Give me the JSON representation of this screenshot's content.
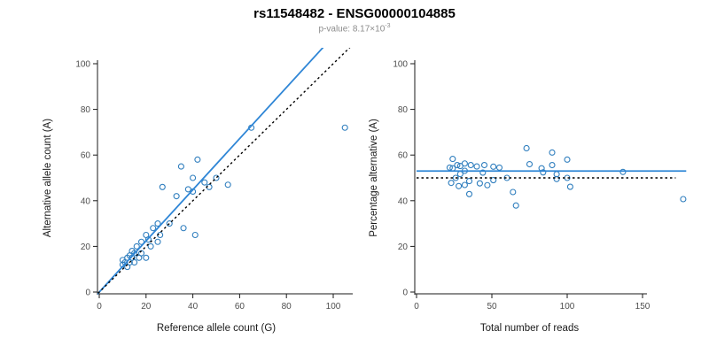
{
  "header": {
    "title": "rs11548482 - ENSG00000104885",
    "pvalue_main": "p-value: 8.17×10",
    "pvalue_exponent": "-3"
  },
  "chart_data": [
    {
      "type": "scatter",
      "xlabel": "Reference allele count (G)",
      "ylabel": "Alternative allele count (A)",
      "xlim": [
        0,
        100
      ],
      "ylim": [
        0,
        100
      ],
      "xticks": [
        0,
        20,
        40,
        60,
        80,
        100
      ],
      "yticks": [
        0,
        20,
        40,
        60,
        80,
        100
      ],
      "grid": false,
      "point_color": "#2f7ebe",
      "points": [
        [
          10,
          12
        ],
        [
          10,
          14
        ],
        [
          11,
          13
        ],
        [
          12,
          15
        ],
        [
          12,
          11
        ],
        [
          13,
          16
        ],
        [
          13,
          13
        ],
        [
          14,
          15
        ],
        [
          14,
          18
        ],
        [
          15,
          13
        ],
        [
          15,
          17
        ],
        [
          16,
          20
        ],
        [
          17,
          15
        ],
        [
          18,
          22
        ],
        [
          18,
          17
        ],
        [
          20,
          25
        ],
        [
          20,
          15
        ],
        [
          21,
          23
        ],
        [
          22,
          20
        ],
        [
          23,
          28
        ],
        [
          25,
          22
        ],
        [
          25,
          30
        ],
        [
          26,
          25
        ],
        [
          27,
          46
        ],
        [
          30,
          30
        ],
        [
          33,
          42
        ],
        [
          35,
          55
        ],
        [
          36,
          28
        ],
        [
          38,
          45
        ],
        [
          40,
          50
        ],
        [
          40,
          44
        ],
        [
          41,
          25
        ],
        [
          42,
          58
        ],
        [
          45,
          48
        ],
        [
          47,
          46
        ],
        [
          50,
          50
        ],
        [
          55,
          47
        ],
        [
          65,
          72
        ],
        [
          105,
          72
        ]
      ],
      "lines": [
        {
          "name": "regression-line",
          "slope": 1.12,
          "intercept": 0,
          "color": "#2f86d6",
          "width": 1.8,
          "dash": "solid",
          "x_range": [
            -2,
            120
          ]
        },
        {
          "name": "identity-line",
          "slope": 1,
          "intercept": 0,
          "color": "#000000",
          "width": 1.4,
          "dash": "dotted",
          "x_range": [
            -2,
            118
          ]
        }
      ]
    },
    {
      "type": "scatter",
      "xlabel": "Total number of reads",
      "ylabel": "Percentage alternative (A)",
      "xlim": [
        0,
        150
      ],
      "ylim": [
        0,
        100
      ],
      "xticks": [
        0,
        50,
        100,
        150
      ],
      "yticks": [
        0,
        20,
        40,
        60,
        80,
        100
      ],
      "grid": false,
      "point_color": "#2f7ebe",
      "points": [
        [
          22,
          54.5
        ],
        [
          24,
          58.3
        ],
        [
          24,
          54.2
        ],
        [
          27,
          55.6
        ],
        [
          23,
          47.8
        ],
        [
          29,
          55.2
        ],
        [
          26,
          50
        ],
        [
          29,
          51.7
        ],
        [
          32,
          56.3
        ],
        [
          28,
          46.4
        ],
        [
          32,
          53.1
        ],
        [
          36,
          55.6
        ],
        [
          32,
          46.9
        ],
        [
          40,
          55
        ],
        [
          35,
          48.6
        ],
        [
          45,
          55.6
        ],
        [
          35,
          42.9
        ],
        [
          44,
          52.3
        ],
        [
          42,
          47.6
        ],
        [
          51,
          54.9
        ],
        [
          47,
          46.8
        ],
        [
          55,
          54.5
        ],
        [
          51,
          49
        ],
        [
          73,
          63
        ],
        [
          60,
          50
        ],
        [
          75,
          56
        ],
        [
          90,
          61.1
        ],
        [
          64,
          43.8
        ],
        [
          83,
          54.2
        ],
        [
          90,
          55.6
        ],
        [
          84,
          52.4
        ],
        [
          66,
          37.9
        ],
        [
          100,
          58
        ],
        [
          93,
          51.6
        ],
        [
          93,
          49.5
        ],
        [
          100,
          50
        ],
        [
          102,
          46.1
        ],
        [
          137,
          52.6
        ],
        [
          177,
          40.7
        ]
      ],
      "lines": [
        {
          "name": "mean-percentage-line",
          "y": 53,
          "color": "#2f86d6",
          "width": 1.8,
          "dash": "solid",
          "x_range": [
            0,
            179
          ]
        },
        {
          "name": "fifty-percent-line",
          "y": 50,
          "color": "#000000",
          "width": 1.4,
          "dash": "dotted",
          "x_range": [
            0,
            172
          ]
        }
      ]
    }
  ]
}
